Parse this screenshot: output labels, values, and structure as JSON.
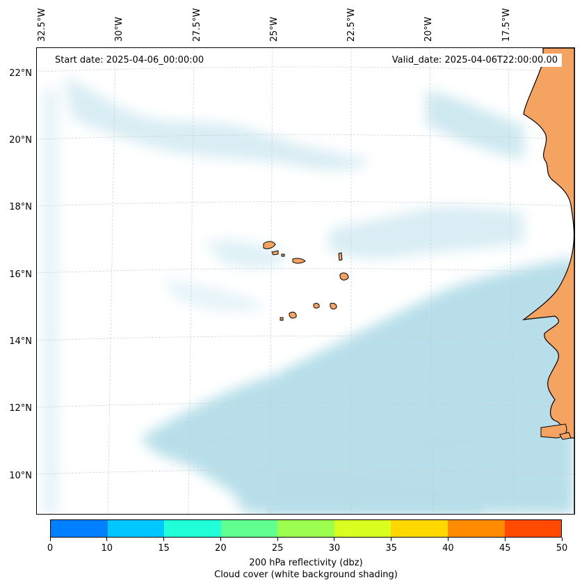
{
  "header": {
    "start_date": "Start date: 2025-04-06_00:00:00",
    "valid_date": "Valid_date: 2025-04-06T22:00:00.00"
  },
  "map": {
    "longitude_labels": [
      "32.5°W",
      "30°W",
      "27.5°W",
      "25°W",
      "22.5°W",
      "20°W",
      "17.5°W"
    ],
    "latitude_labels": [
      "22°N",
      "20°N",
      "18°N",
      "16°N",
      "14°N",
      "12°N",
      "10°N"
    ],
    "colors": {
      "cloud": "#b0dbe7",
      "land": "#f4a460",
      "coastline": "#000000",
      "gridline": "#c8c8c8"
    }
  },
  "colorbar": {
    "colors": [
      "#0080ff",
      "#00c8ff",
      "#20ffd8",
      "#60ff90",
      "#9cff50",
      "#d8ff20",
      "#ffd800",
      "#ff8c00",
      "#ff4a00"
    ],
    "tick_labels": [
      "0",
      "10",
      "15",
      "20",
      "25",
      "30",
      "35",
      "40",
      "45",
      "50"
    ],
    "title": "200 hPa reflectivity (dbz)",
    "subtitle": "Cloud cover (white background shading)"
  }
}
